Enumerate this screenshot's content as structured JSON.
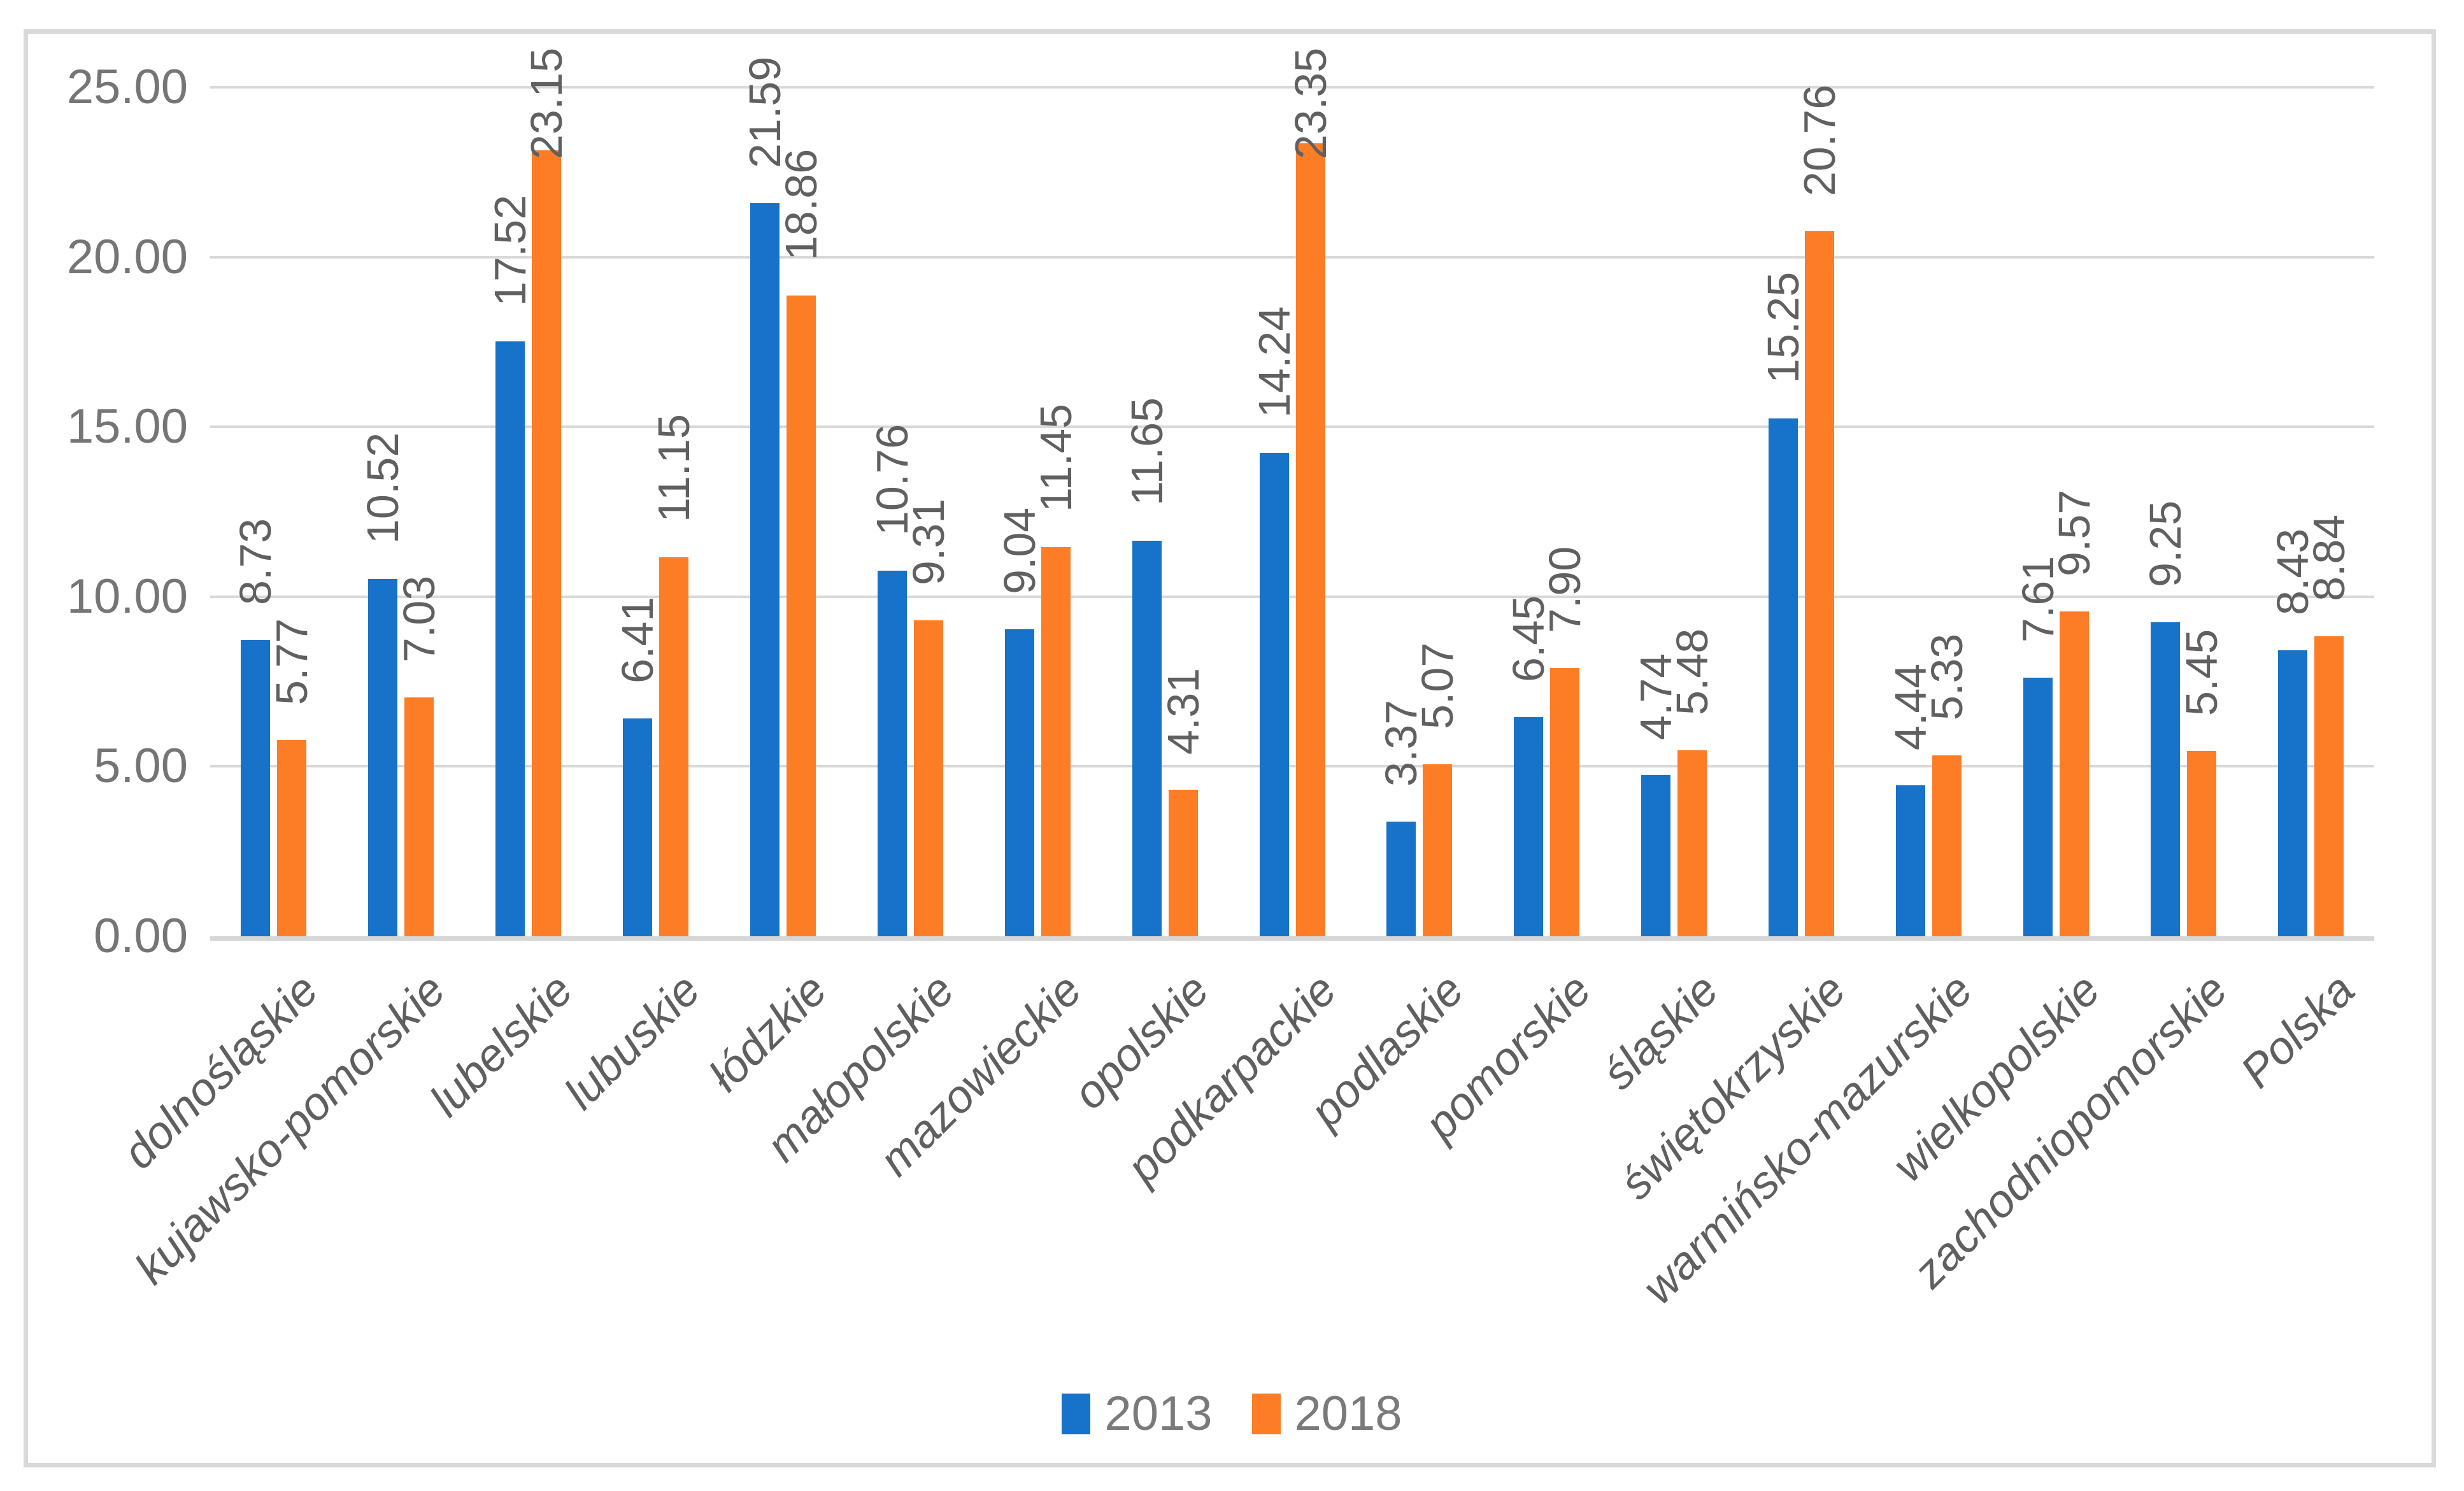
{
  "chart_data": {
    "type": "bar",
    "title": "",
    "xlabel": "",
    "ylabel": "",
    "categories": [
      "dolnośląskie",
      "kujawsko-pomorskie",
      "lubelskie",
      "lubuskie",
      "łódzkie",
      "małopolskie",
      "mazowieckie",
      "opolskie",
      "podkarpackie",
      "podlaskie",
      "pomorskie",
      "śląskie",
      "świętokrzyskie",
      "warmińsko-mazurskie",
      "wielkopolskie",
      "zachodniopomorskie",
      "Polska"
    ],
    "series": [
      {
        "name": "2013",
        "color": "#1772C9",
        "values": [
          8.73,
          10.52,
          17.52,
          6.41,
          21.59,
          10.76,
          9.04,
          11.65,
          14.24,
          3.37,
          6.45,
          4.74,
          15.25,
          4.44,
          7.61,
          9.25,
          8.43
        ]
      },
      {
        "name": "2018",
        "color": "#FC7D26",
        "values": [
          5.77,
          7.03,
          23.15,
          11.15,
          18.86,
          9.31,
          11.45,
          4.31,
          23.35,
          5.07,
          7.9,
          5.48,
          20.76,
          5.33,
          9.57,
          5.45,
          8.84
        ]
      }
    ],
    "ylim": [
      0,
      25
    ],
    "ytick_step": 5,
    "ytick_labels": [
      "0.00",
      "5.00",
      "10.00",
      "15.00",
      "20.00",
      "25.00"
    ],
    "grid": true,
    "legend_position": "bottom",
    "value_labels": "outside end, rotated 90 degrees, two decimals",
    "category_labels_rotation_deg": 45,
    "styles": {
      "gridline_color": "#D9D9D9",
      "axis_text_color": "#757575",
      "value_text_color": "#606060",
      "category_text_color": "#5f5f5f",
      "frame_border_color": "#D9D9D9",
      "background_color": "#FFFFFF"
    }
  },
  "legend": {
    "items": [
      {
        "label": "2013",
        "color": "#1772C9"
      },
      {
        "label": "2018",
        "color": "#FC7D26"
      }
    ]
  }
}
